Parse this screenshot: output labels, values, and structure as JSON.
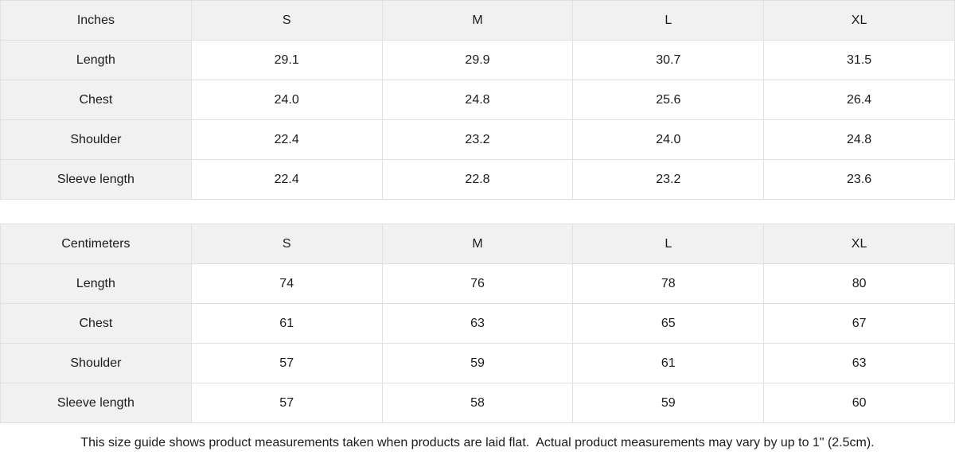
{
  "tables": [
    {
      "unit_label": "Inches",
      "size_headers": [
        "S",
        "M",
        "L",
        "XL"
      ],
      "rows": [
        {
          "label": "Length",
          "values": [
            "29.1",
            "29.9",
            "30.7",
            "31.5"
          ]
        },
        {
          "label": "Chest",
          "values": [
            "24.0",
            "24.8",
            "25.6",
            "26.4"
          ]
        },
        {
          "label": "Shoulder",
          "values": [
            "22.4",
            "23.2",
            "24.0",
            "24.8"
          ]
        },
        {
          "label": "Sleeve length",
          "values": [
            "22.4",
            "22.8",
            "23.2",
            "23.6"
          ]
        }
      ]
    },
    {
      "unit_label": "Centimeters",
      "size_headers": [
        "S",
        "M",
        "L",
        "XL"
      ],
      "rows": [
        {
          "label": "Length",
          "values": [
            "74",
            "76",
            "78",
            "80"
          ]
        },
        {
          "label": "Chest",
          "values": [
            "61",
            "63",
            "65",
            "67"
          ]
        },
        {
          "label": "Shoulder",
          "values": [
            "57",
            "59",
            "61",
            "63"
          ]
        },
        {
          "label": "Sleeve length",
          "values": [
            "57",
            "58",
            "59",
            "60"
          ]
        }
      ]
    }
  ],
  "footer": {
    "note": "This size guide shows product measurements taken when products are laid flat.  Actual product measurements may vary by up to 1\" (2.5cm)."
  },
  "colors": {
    "header_bg": "#f1f1f1",
    "cell_bg": "#ffffff",
    "border": "#e0e0e0",
    "text": "#1b1b1b"
  }
}
